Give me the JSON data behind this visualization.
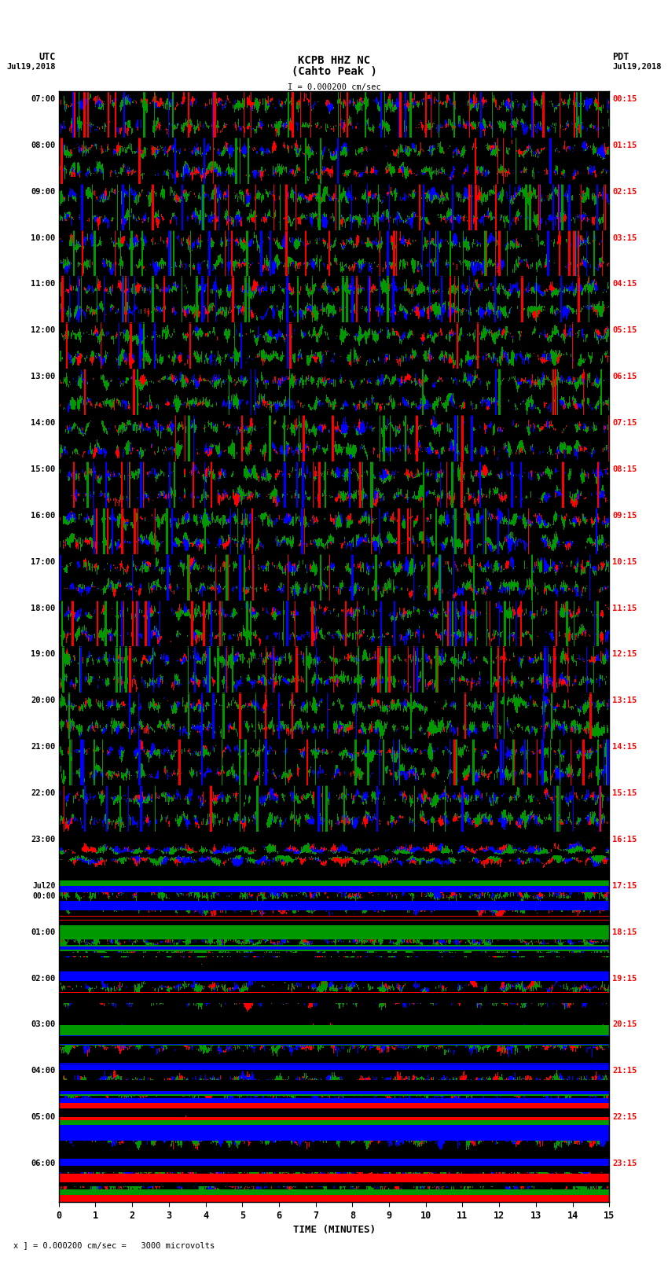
{
  "title_line1": "KCPB HHZ NC",
  "title_line2": "(Cahto Peak )",
  "scale_label": "I = 0.000200 cm/sec",
  "label_utc": "UTC",
  "label_pdt": "PDT",
  "date_left": "Jul19,2018",
  "date_right": "Jul19,2018",
  "xlabel": "TIME (MINUTES)",
  "footer": "x ] = 0.000200 cm/sec =   3000 microvolts",
  "utc_times": [
    "07:00",
    "08:00",
    "09:00",
    "10:00",
    "11:00",
    "12:00",
    "13:00",
    "14:00",
    "15:00",
    "16:00",
    "17:00",
    "18:00",
    "19:00",
    "20:00",
    "21:00",
    "22:00",
    "23:00",
    "Jul20\n00:00",
    "01:00",
    "02:00",
    "03:00",
    "04:00",
    "05:00",
    "06:00"
  ],
  "pdt_times": [
    "00:15",
    "01:15",
    "02:15",
    "03:15",
    "04:15",
    "05:15",
    "06:15",
    "07:15",
    "08:15",
    "09:15",
    "10:15",
    "11:15",
    "12:15",
    "13:15",
    "14:15",
    "15:15",
    "16:15",
    "17:15",
    "18:15",
    "19:15",
    "20:15",
    "21:15",
    "22:15",
    "23:15"
  ],
  "n_rows": 24,
  "n_minutes": 15,
  "fig_width": 8.5,
  "fig_height": 16.13
}
